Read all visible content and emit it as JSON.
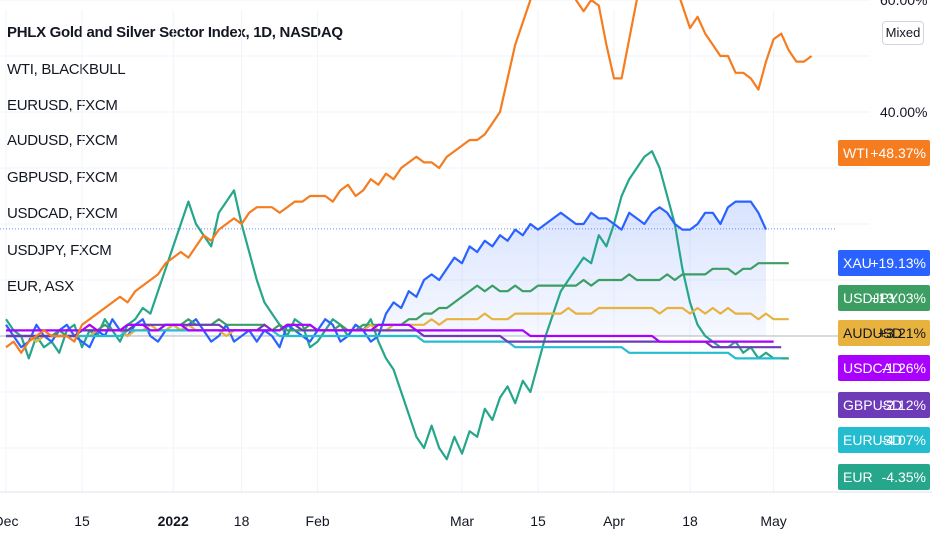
{
  "title": "PHLX Gold and Silver Sector Index, 1D, NASDAQ",
  "legend": [
    "WTI, BLACKBULL",
    "EURUSD, FXCM",
    "AUDUSD, FXCM",
    "GBPUSD, FXCM",
    "USDCAD, FXCM",
    "USDJPY, FXCM",
    "EUR, ASX"
  ],
  "scale_button": "Mixed",
  "chart_data": {
    "type": "line",
    "title": "PHLX Gold and Silver Sector Index, 1D, NASDAQ",
    "y_unit": "%",
    "y_ticks": [
      {
        "value": 60,
        "label": "60.00%"
      },
      {
        "value": 40,
        "label": "40.00%"
      }
    ],
    "ylim": [
      -25,
      70
    ],
    "x_ticks": [
      {
        "t": 0,
        "label": "Dec"
      },
      {
        "t": 10,
        "label": "15"
      },
      {
        "t": 22,
        "label": "2022"
      },
      {
        "t": 31,
        "label": "18"
      },
      {
        "t": 41,
        "label": "Feb"
      },
      {
        "t": 60,
        "label": "Mar"
      },
      {
        "t": 70,
        "label": "15"
      },
      {
        "t": 80,
        "label": "Apr"
      },
      {
        "t": 90,
        "label": "18"
      },
      {
        "t": 101,
        "label": "May"
      }
    ],
    "xlim": [
      0,
      107
    ],
    "grid": true,
    "series": [
      {
        "name": "WTI",
        "color": "#f57c1f",
        "badge": "+48.37%",
        "last": 48.37,
        "values": [
          -2,
          -1,
          -3,
          -1,
          0,
          1,
          0,
          0,
          0,
          -1,
          2,
          3,
          4,
          5,
          6,
          7,
          6,
          8,
          9,
          10,
          11,
          13,
          14,
          15,
          14,
          16,
          18,
          17,
          19,
          20,
          21,
          20,
          22,
          23,
          23,
          23,
          22,
          23,
          24,
          24,
          25,
          25,
          25,
          24,
          26,
          27,
          25,
          26,
          28,
          27,
          29,
          28,
          30,
          31,
          32,
          31,
          31,
          30,
          32,
          33,
          34,
          35,
          35,
          36,
          38,
          40,
          46,
          52,
          56,
          60,
          64,
          69,
          74,
          78,
          66,
          60,
          58,
          60,
          59,
          52,
          46,
          46,
          53,
          60,
          62,
          64,
          66,
          62,
          63,
          59,
          55,
          57,
          54,
          52,
          50,
          50,
          47,
          47,
          46,
          44,
          49,
          53,
          54,
          51,
          49,
          49,
          50
        ]
      },
      {
        "name": "XAU",
        "color": "#2962ff",
        "badge": "+19.13%",
        "last": 19.13,
        "area": true,
        "values": [
          2,
          0,
          -2,
          -1,
          2,
          0,
          -1,
          1,
          2,
          0,
          -1,
          -2,
          1,
          0,
          3,
          1,
          0,
          2,
          3,
          0,
          -1,
          1,
          2,
          1,
          2,
          3,
          1,
          -1,
          0,
          2,
          -1,
          0,
          1,
          -1,
          1,
          0,
          -2,
          2,
          1,
          0,
          -1,
          1,
          3,
          2,
          -1,
          0,
          2,
          1,
          -1,
          0,
          4,
          6,
          5,
          8,
          7,
          10,
          11,
          10,
          12,
          14,
          13,
          16,
          15,
          17,
          16,
          18,
          17,
          19,
          18,
          20,
          19,
          20,
          21,
          22,
          21,
          20,
          20,
          22,
          21,
          21,
          20,
          19,
          22,
          21,
          20,
          22,
          23,
          22,
          20,
          19,
          19,
          20,
          22,
          22,
          20,
          23,
          24,
          24,
          24,
          22,
          19
        ]
      },
      {
        "name": "USDJPY",
        "color": "#3c9e63",
        "badge": "+13.03%",
        "last": 13.03,
        "values": [
          0,
          0,
          0,
          0,
          0,
          0,
          0,
          1,
          0,
          0,
          1,
          1,
          1,
          2,
          1,
          1,
          2,
          2,
          2,
          2,
          1,
          2,
          2,
          2,
          3,
          2,
          2,
          2,
          3,
          2,
          2,
          2,
          2,
          2,
          2,
          1,
          2,
          1,
          1,
          1,
          2,
          1,
          1,
          1,
          2,
          1,
          1,
          2,
          2,
          2,
          2,
          2,
          2,
          3,
          3,
          4,
          4,
          5,
          5,
          6,
          7,
          8,
          9,
          8,
          9,
          8,
          8,
          9,
          8,
          8,
          9,
          9,
          9,
          9,
          9,
          9,
          10,
          9,
          10,
          10,
          10,
          10,
          11,
          10,
          10,
          10,
          10,
          11,
          10,
          11,
          11,
          11,
          11,
          12,
          12,
          12,
          11,
          12,
          12,
          13,
          13,
          13,
          13,
          13
        ]
      },
      {
        "name": "AUDUSD",
        "color": "#e8b23e",
        "badge": "+3.21%",
        "last": 3.21,
        "values": [
          0,
          0,
          0,
          0,
          -1,
          0,
          0,
          0,
          0,
          0,
          0,
          0,
          1,
          1,
          1,
          1,
          0,
          1,
          1,
          2,
          1,
          1,
          2,
          1,
          2,
          1,
          1,
          1,
          1,
          0,
          1,
          1,
          1,
          1,
          2,
          1,
          1,
          2,
          2,
          1,
          1,
          1,
          1,
          1,
          1,
          1,
          1,
          1,
          2,
          1,
          1,
          2,
          2,
          2,
          2,
          2,
          3,
          2,
          3,
          3,
          3,
          3,
          3,
          4,
          3,
          3,
          3,
          4,
          4,
          4,
          4,
          4,
          4,
          4,
          5,
          4,
          4,
          4,
          5,
          5,
          5,
          5,
          5,
          5,
          5,
          5,
          4,
          5,
          5,
          5,
          4,
          5,
          4,
          5,
          4,
          5,
          4,
          4,
          4,
          3,
          4,
          3,
          3,
          3
        ]
      },
      {
        "name": "USDCAD",
        "color": "#aa00ff",
        "badge": "-1.26%",
        "last": -1.26,
        "values": [
          1,
          1,
          1,
          1,
          1,
          1,
          1,
          1,
          1,
          1,
          1,
          2,
          1,
          1,
          1,
          1,
          2,
          2,
          2,
          1,
          1,
          2,
          2,
          2,
          1,
          1,
          1,
          1,
          1,
          1,
          1,
          1,
          1,
          1,
          1,
          1,
          1,
          2,
          2,
          2,
          2,
          1,
          1,
          1,
          1,
          1,
          1,
          1,
          1,
          2,
          2,
          2,
          2,
          2,
          1,
          1,
          1,
          1,
          1,
          1,
          1,
          1,
          1,
          1,
          1,
          1,
          1,
          1,
          1,
          0,
          0,
          0,
          0,
          0,
          0,
          0,
          0,
          0,
          0,
          0,
          0,
          0,
          0,
          0,
          0,
          0,
          -1,
          -1,
          -1,
          -1,
          -1,
          -1,
          -1,
          -1,
          -1,
          -1,
          -1,
          -1,
          -1,
          -1,
          -1,
          -1
        ]
      },
      {
        "name": "GBPUSD",
        "color": "#6d3ab8",
        "badge": "-2.12%",
        "last": -2.12,
        "values": [
          0,
          0,
          0,
          0,
          0,
          0,
          0,
          0,
          0,
          0,
          1,
          1,
          1,
          1,
          1,
          1,
          1,
          2,
          2,
          2,
          2,
          2,
          2,
          2,
          2,
          2,
          2,
          2,
          2,
          1,
          1,
          1,
          1,
          1,
          2,
          1,
          1,
          2,
          2,
          1,
          1,
          1,
          1,
          1,
          1,
          1,
          1,
          1,
          1,
          1,
          1,
          1,
          1,
          1,
          1,
          0,
          0,
          0,
          0,
          0,
          0,
          0,
          0,
          0,
          0,
          0,
          -1,
          -1,
          -1,
          -1,
          -1,
          -1,
          -1,
          -1,
          -1,
          -1,
          -1,
          -1,
          -1,
          -1,
          -1,
          -1,
          -1,
          -1,
          -1,
          -1,
          -1,
          -1,
          -1,
          -1,
          -1,
          -1,
          -1,
          -2,
          -2,
          -2,
          -2,
          -2,
          -2,
          -2,
          -2,
          -2,
          -2
        ]
      },
      {
        "name": "EURUSD",
        "color": "#24bccf",
        "badge": "-4.07%",
        "last": -4.07,
        "values": [
          0,
          0,
          0,
          0,
          0,
          0,
          0,
          0,
          0,
          0,
          0,
          0,
          0,
          0,
          0,
          0,
          1,
          1,
          1,
          1,
          1,
          1,
          1,
          1,
          1,
          1,
          1,
          1,
          1,
          1,
          1,
          1,
          1,
          1,
          1,
          1,
          0,
          0,
          0,
          0,
          0,
          0,
          0,
          0,
          0,
          0,
          0,
          0,
          0,
          0,
          0,
          0,
          0,
          0,
          0,
          -1,
          -1,
          -1,
          -1,
          -1,
          -1,
          -1,
          -1,
          -1,
          -1,
          -1,
          -1,
          -2,
          -2,
          -2,
          -2,
          -2,
          -2,
          -2,
          -2,
          -2,
          -2,
          -2,
          -2,
          -2,
          -2,
          -2,
          -3,
          -3,
          -3,
          -3,
          -3,
          -3,
          -3,
          -3,
          -3,
          -3,
          -3,
          -3,
          -3,
          -3,
          -4,
          -4,
          -4,
          -4,
          -4,
          -4,
          -4
        ]
      },
      {
        "name": "EUR",
        "color": "#26a68a",
        "badge": "-4.35%",
        "last": -4.35,
        "values": [
          3,
          1,
          0,
          -4,
          0,
          -2,
          -1,
          -3,
          1,
          2,
          -2,
          1,
          0,
          3,
          1,
          -1,
          2,
          3,
          5,
          4,
          8,
          12,
          16,
          20,
          24,
          20,
          18,
          16,
          22,
          24,
          26,
          20,
          15,
          10,
          6,
          4,
          2,
          0,
          3,
          2,
          -2,
          -1,
          1,
          3,
          2,
          0,
          2,
          1,
          3,
          -1,
          -4,
          -6,
          -10,
          -14,
          -18,
          -20,
          -16,
          -20,
          -22,
          -18,
          -21,
          -17,
          -18,
          -13,
          -15,
          -11,
          -9,
          -12,
          -8,
          -10,
          -5,
          0,
          4,
          8,
          10,
          12,
          14,
          13,
          18,
          16,
          20,
          25,
          28,
          30,
          32,
          33,
          30,
          25,
          20,
          12,
          6,
          2,
          0,
          -1,
          -2,
          -2,
          -1,
          -3,
          -2,
          -4,
          -3,
          -4,
          -4,
          -4
        ]
      }
    ]
  }
}
